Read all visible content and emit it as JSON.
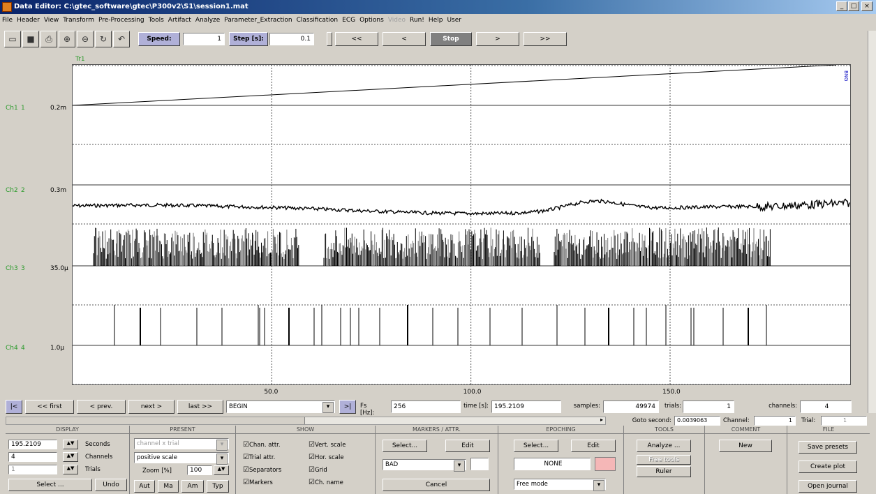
{
  "window": {
    "title": "Data Editor: C:\\gtec_software\\gtec\\P300v2\\S1\\session1.mat"
  },
  "menu": [
    {
      "label": "File",
      "enabled": true
    },
    {
      "label": "Header",
      "enabled": true
    },
    {
      "label": "View",
      "enabled": true
    },
    {
      "label": "Transform",
      "enabled": true
    },
    {
      "label": "Pre-Processing",
      "enabled": true
    },
    {
      "label": "Tools",
      "enabled": true
    },
    {
      "label": "Artifact",
      "enabled": true
    },
    {
      "label": "Analyze",
      "enabled": true
    },
    {
      "label": "Parameter_Extraction",
      "enabled": true
    },
    {
      "label": "Classification",
      "enabled": true
    },
    {
      "label": "ECG",
      "enabled": true
    },
    {
      "label": "Options",
      "enabled": true
    },
    {
      "label": "Video",
      "enabled": false
    },
    {
      "label": "Run!",
      "enabled": true
    },
    {
      "label": "Help",
      "enabled": true
    },
    {
      "label": "User",
      "enabled": true
    }
  ],
  "toolbar": {
    "speed_label": "Speed:",
    "speed_value": "1",
    "step_label": "Step [s]:",
    "step_value": "0.1",
    "fast_back": "<<",
    "back": "<",
    "stop": "Stop",
    "forward": ">",
    "fast_forward": ">>"
  },
  "plot": {
    "trial_label": "Tr1",
    "right_tag": "BNG",
    "channels": [
      {
        "name": "Ch1",
        "index": "1",
        "scale": "0.2m"
      },
      {
        "name": "Ch2",
        "index": "2",
        "scale": "0.3m"
      },
      {
        "name": "Ch3",
        "index": "3",
        "scale": "35.0µ"
      },
      {
        "name": "Ch4",
        "index": "4",
        "scale": "1.0µ"
      }
    ],
    "x_ticks": [
      "50.0",
      "100.0",
      "150.0"
    ],
    "x_tick_values": [
      50,
      100,
      150
    ],
    "x_range": [
      0,
      195.21
    ]
  },
  "nav": {
    "jump_start": "|<",
    "first": "<< first",
    "prev": "< prev.",
    "next": "next >",
    "last": "last >>",
    "marker": "BEGIN",
    "jump_end": ">|",
    "fs_label": "Fs [Hz]:",
    "fs_value": "256",
    "time_label": "time [s]:",
    "time_value": "195.2109",
    "samples_label": "samples:",
    "samples_value": "49974",
    "trials_label": "trials:",
    "trials_value": "1",
    "channels_label": "channels:",
    "channels_value": "4"
  },
  "goto": {
    "label": "Goto second:",
    "value": "0.0039063",
    "channel_label": "Channel:",
    "channel_value": "1",
    "trial_label": "Trial:",
    "trial_value": "1"
  },
  "panel": {
    "display": {
      "header": "DISPLAY",
      "seconds_value": "195.2109",
      "seconds_label": "Seconds",
      "channels_value": "4",
      "channels_label": "Channels",
      "trials_value": "1",
      "trials_label": "Trials",
      "select": "Select ...",
      "undo": "Undo"
    },
    "present": {
      "header": "PRESENT",
      "mode": "channel x trial",
      "scale": "positive scale",
      "zoom_label": "Zoom [%]",
      "zoom_value": "100",
      "aut": "Aut",
      "ma": "Ma",
      "am": "Am",
      "typ": "Typ"
    },
    "show": {
      "header": "SHOW",
      "items": [
        "Chan. attr.",
        "Trial attr.",
        "Separators",
        "Markers",
        "Vert. scale",
        "Hor. scale",
        "Grid",
        "Ch. name"
      ]
    },
    "markers": {
      "header": "MARKERS / ATTR.",
      "select": "Select...",
      "edit": "Edit",
      "value": "BAD",
      "cancel": "Cancel"
    },
    "epoching": {
      "header": "EPOCHING",
      "select": "Select...",
      "edit": "Edit",
      "value": "NONE",
      "mode": "Free mode",
      "swatch_color": "#f5b7b7"
    },
    "tools": {
      "header": "TOOLS",
      "analyze": "Analyze ...",
      "disabled": "Free tools",
      "ruler": "Ruler"
    },
    "comment": {
      "header": "COMMENT",
      "new": "New"
    },
    "file": {
      "header": "FILE",
      "save": "Save presets",
      "plot": "Create plot",
      "journal": "Open journal"
    }
  }
}
